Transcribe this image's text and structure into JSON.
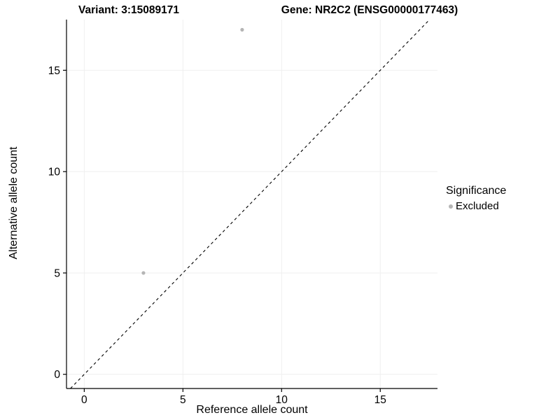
{
  "chart_data": {
    "type": "scatter",
    "title_left": "Variant: 3:15089171",
    "title_right": "Gene: NR2C2 (ENSG00000177463)",
    "xlabel": "Reference allele count",
    "ylabel": "Alternative allele count",
    "xlim": [
      -0.9,
      17.9
    ],
    "ylim": [
      -0.7,
      17.5
    ],
    "xticks": [
      0,
      5,
      10,
      15
    ],
    "yticks": [
      0,
      5,
      10,
      15
    ],
    "grid": true,
    "identity_line": {
      "style": "dashed",
      "color": "#000000"
    },
    "series": [
      {
        "name": "Excluded",
        "color": "#b5b5b5",
        "points": [
          {
            "x": 3,
            "y": 5
          },
          {
            "x": 8,
            "y": 17
          }
        ]
      }
    ],
    "legend": {
      "title": "Significance",
      "position": "right",
      "items": [
        {
          "label": "Excluded",
          "color": "#b5b5b5"
        }
      ]
    }
  },
  "colors": {
    "point": "#b5b5b5",
    "grid": "#efefef",
    "axis": "#000000",
    "background": "#ffffff",
    "text": "#000000"
  }
}
